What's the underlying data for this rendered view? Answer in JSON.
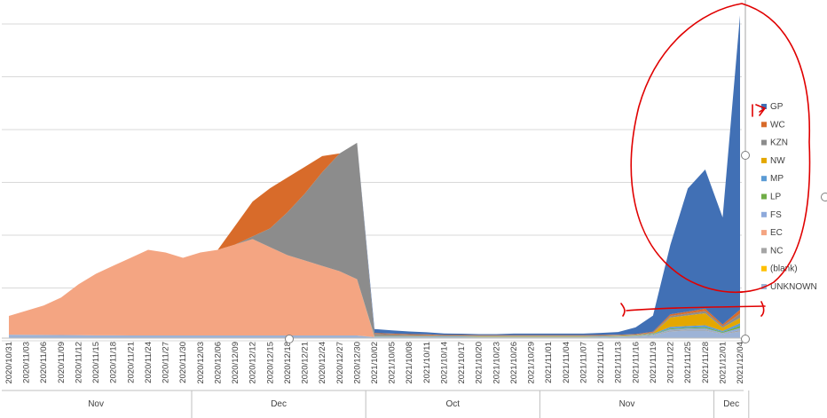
{
  "chart_data": {
    "type": "area",
    "stacked": true,
    "title": "",
    "xlabel": "",
    "ylabel": "",
    "grid": true,
    "legend_position": "right",
    "y_axis_labels_visible": false,
    "x": [
      "2020/10/31",
      "2020/11/03",
      "2020/11/06",
      "2020/11/09",
      "2020/11/12",
      "2020/11/15",
      "2020/11/18",
      "2020/11/21",
      "2020/11/24",
      "2020/11/27",
      "2020/11/30",
      "2020/12/03",
      "2020/12/06",
      "2020/12/09",
      "2020/12/12",
      "2020/12/15",
      "2020/12/18",
      "2020/12/21",
      "2020/12/24",
      "2020/12/27",
      "2020/12/30",
      "2021/10/02",
      "2021/10/05",
      "2021/10/08",
      "2021/10/11",
      "2021/10/14",
      "2021/10/17",
      "2021/10/20",
      "2021/10/23",
      "2021/10/26",
      "2021/10/29",
      "2021/11/01",
      "2021/11/04",
      "2021/11/07",
      "2021/11/10",
      "2021/11/13",
      "2021/11/16",
      "2021/11/19",
      "2021/11/22",
      "2021/11/25",
      "2021/11/28",
      "2021/12/01",
      "2021/12/04"
    ],
    "month_groups": [
      {
        "label": "Nov",
        "start": 0,
        "end": 10
      },
      {
        "label": "Dec",
        "start": 11,
        "end": 20
      },
      {
        "label": "Oct",
        "start": 21,
        "end": 30
      },
      {
        "label": "Nov",
        "start": 31,
        "end": 40
      },
      {
        "label": "Dec",
        "start": 41,
        "end": 42
      }
    ],
    "series": [
      {
        "name": "UNKNOWN",
        "color": "#9db3d6",
        "values": [
          130,
          125,
          120,
          115,
          110,
          105,
          105,
          100,
          100,
          100,
          100,
          100,
          100,
          100,
          100,
          100,
          100,
          100,
          100,
          100,
          100,
          30,
          30,
          30,
          30,
          25,
          25,
          20,
          20,
          20,
          20,
          20,
          20,
          20,
          25,
          40,
          60,
          90,
          250,
          280,
          280,
          150,
          250
        ]
      },
      {
        "name": "(blank)",
        "color": "#ffc000",
        "values": [
          0,
          0,
          0,
          0,
          0,
          0,
          0,
          0,
          0,
          0,
          0,
          0,
          0,
          0,
          0,
          0,
          0,
          0,
          0,
          0,
          0,
          0,
          0,
          0,
          0,
          0,
          0,
          0,
          0,
          0,
          0,
          0,
          0,
          0,
          0,
          0,
          0,
          0,
          0,
          0,
          0,
          0,
          0
        ]
      },
      {
        "name": "NC",
        "color": "#a5a5a5",
        "values": [
          0,
          0,
          0,
          0,
          0,
          0,
          0,
          0,
          0,
          0,
          0,
          0,
          0,
          0,
          0,
          0,
          0,
          0,
          0,
          0,
          0,
          10,
          10,
          10,
          10,
          10,
          10,
          10,
          10,
          10,
          10,
          10,
          10,
          10,
          10,
          10,
          10,
          20,
          40,
          40,
          40,
          20,
          50
        ]
      },
      {
        "name": "EC",
        "color": "#f4a582",
        "values": [
          700,
          900,
          1100,
          1400,
          1900,
          2300,
          2600,
          2900,
          3200,
          3100,
          2900,
          3100,
          3200,
          3400,
          3600,
          3300,
          3000,
          2800,
          2600,
          2400,
          2100,
          0,
          0,
          0,
          0,
          0,
          0,
          0,
          0,
          0,
          0,
          0,
          0,
          0,
          0,
          0,
          0,
          0,
          0,
          0,
          0,
          0,
          0
        ]
      },
      {
        "name": "FS",
        "color": "#8eaadb",
        "values": [
          0,
          0,
          0,
          0,
          0,
          0,
          0,
          0,
          0,
          0,
          0,
          0,
          0,
          0,
          0,
          0,
          0,
          0,
          0,
          0,
          0,
          10,
          10,
          10,
          10,
          10,
          10,
          10,
          10,
          10,
          10,
          10,
          10,
          10,
          10,
          10,
          10,
          20,
          40,
          40,
          50,
          30,
          80
        ]
      },
      {
        "name": "LP",
        "color": "#70ad47",
        "values": [
          0,
          0,
          0,
          0,
          0,
          0,
          0,
          0,
          0,
          0,
          0,
          0,
          0,
          0,
          0,
          0,
          0,
          0,
          0,
          0,
          0,
          10,
          10,
          10,
          10,
          10,
          10,
          10,
          10,
          10,
          10,
          10,
          10,
          10,
          10,
          10,
          10,
          10,
          30,
          30,
          40,
          30,
          80
        ]
      },
      {
        "name": "MP",
        "color": "#5b9bd5",
        "values": [
          0,
          0,
          0,
          0,
          0,
          0,
          0,
          0,
          0,
          0,
          0,
          0,
          0,
          0,
          0,
          0,
          0,
          0,
          0,
          0,
          0,
          10,
          10,
          10,
          10,
          10,
          10,
          10,
          10,
          10,
          10,
          10,
          10,
          10,
          10,
          10,
          10,
          20,
          60,
          60,
          70,
          40,
          100
        ]
      },
      {
        "name": "NW",
        "color": "#e4a700",
        "values": [
          0,
          0,
          0,
          0,
          0,
          0,
          0,
          0,
          0,
          0,
          0,
          0,
          0,
          0,
          0,
          0,
          0,
          0,
          0,
          0,
          0,
          10,
          10,
          10,
          10,
          10,
          10,
          10,
          10,
          10,
          10,
          10,
          10,
          10,
          10,
          10,
          10,
          20,
          350,
          400,
          450,
          120,
          200
        ]
      },
      {
        "name": "KZN",
        "color": "#8c8c8c",
        "values": [
          0,
          0,
          0,
          0,
          0,
          0,
          0,
          0,
          0,
          0,
          0,
          0,
          0,
          0,
          100,
          700,
          1600,
          2500,
          3500,
          4400,
          5100,
          80,
          60,
          40,
          30,
          20,
          20,
          20,
          20,
          20,
          20,
          20,
          20,
          20,
          20,
          20,
          20,
          30,
          60,
          70,
          80,
          60,
          150
        ]
      },
      {
        "name": "WC",
        "color": "#d86b2a",
        "values": [
          0,
          0,
          0,
          0,
          0,
          0,
          0,
          0,
          0,
          0,
          0,
          0,
          0,
          700,
          1300,
          1500,
          1300,
          1000,
          600,
          0,
          0,
          30,
          30,
          30,
          30,
          20,
          20,
          20,
          20,
          20,
          20,
          20,
          20,
          20,
          20,
          20,
          20,
          30,
          60,
          70,
          90,
          60,
          150
        ]
      },
      {
        "name": "GP",
        "color": "#4170b5",
        "values": [
          0,
          0,
          0,
          0,
          0,
          0,
          0,
          0,
          0,
          0,
          0,
          0,
          0,
          0,
          0,
          0,
          0,
          0,
          0,
          0,
          0,
          150,
          120,
          100,
          80,
          60,
          50,
          40,
          40,
          60,
          60,
          60,
          60,
          60,
          80,
          100,
          250,
          600,
          2600,
          4600,
          5200,
          4000,
          11000
        ]
      }
    ],
    "legend_order": [
      "GP",
      "WC",
      "KZN",
      "NW",
      "MP",
      "LP",
      "FS",
      "EC",
      "NC",
      "(blank)",
      "UNKNOWN"
    ]
  }
}
